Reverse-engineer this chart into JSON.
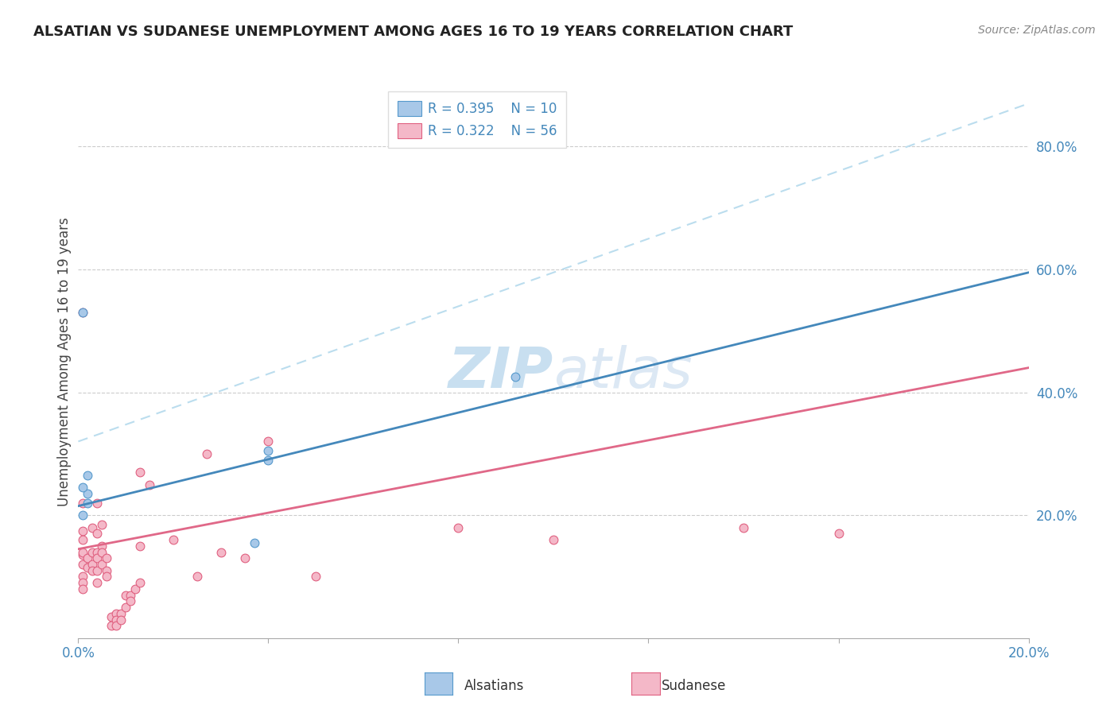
{
  "title": "ALSATIAN VS SUDANESE UNEMPLOYMENT AMONG AGES 16 TO 19 YEARS CORRELATION CHART",
  "source": "Source: ZipAtlas.com",
  "ylabel": "Unemployment Among Ages 16 to 19 years",
  "alsatian_R": "R = 0.395",
  "alsatian_N": "N = 10",
  "sudanese_R": "R = 0.322",
  "sudanese_N": "N = 56",
  "alsatian_color": "#a8c8e8",
  "sudanese_color": "#f4b8c8",
  "alsatian_edge_color": "#5599cc",
  "sudanese_edge_color": "#e06080",
  "trend_blue_color": "#4488bb",
  "trend_pink_color": "#e06888",
  "trend_dashed_color": "#bbddee",
  "legend_text_color": "#4488bb",
  "axis_label_color": "#4488bb",
  "watermark_color": "#ddeeff",
  "grid_color": "#cccccc",
  "title_color": "#222222",
  "source_color": "#888888",
  "ylabel_color": "#444444",
  "xlim": [
    0.0,
    0.2
  ],
  "ylim": [
    0.0,
    0.9
  ],
  "right_yticks": [
    0.2,
    0.4,
    0.6,
    0.8
  ],
  "right_yticklabels": [
    "20.0%",
    "40.0%",
    "60.0%",
    "80.0%"
  ],
  "xtick_positions": [
    0.0,
    0.04,
    0.08,
    0.12,
    0.16,
    0.2
  ],
  "xtick_labels": [
    "0.0%",
    "",
    "",
    "",
    "",
    "20.0%"
  ],
  "blue_trend_x": [
    0.0,
    0.2
  ],
  "blue_trend_y": [
    0.215,
    0.595
  ],
  "pink_trend_x": [
    0.0,
    0.2
  ],
  "pink_trend_y": [
    0.145,
    0.44
  ],
  "dashed_trend_x": [
    0.0,
    0.2
  ],
  "dashed_trend_y": [
    0.32,
    0.87
  ],
  "alsatian_points": [
    [
      0.001,
      0.53
    ],
    [
      0.002,
      0.265
    ],
    [
      0.002,
      0.235
    ],
    [
      0.002,
      0.22
    ],
    [
      0.001,
      0.2
    ],
    [
      0.037,
      0.155
    ],
    [
      0.04,
      0.29
    ],
    [
      0.04,
      0.305
    ],
    [
      0.092,
      0.425
    ],
    [
      0.001,
      0.245
    ]
  ],
  "sudanese_points": [
    [
      0.001,
      0.135
    ],
    [
      0.001,
      0.14
    ],
    [
      0.001,
      0.12
    ],
    [
      0.001,
      0.1
    ],
    [
      0.001,
      0.09
    ],
    [
      0.001,
      0.08
    ],
    [
      0.001,
      0.22
    ],
    [
      0.001,
      0.175
    ],
    [
      0.001,
      0.16
    ],
    [
      0.002,
      0.13
    ],
    [
      0.002,
      0.115
    ],
    [
      0.003,
      0.18
    ],
    [
      0.003,
      0.14
    ],
    [
      0.003,
      0.12
    ],
    [
      0.003,
      0.11
    ],
    [
      0.004,
      0.22
    ],
    [
      0.004,
      0.17
    ],
    [
      0.004,
      0.14
    ],
    [
      0.004,
      0.13
    ],
    [
      0.004,
      0.11
    ],
    [
      0.004,
      0.09
    ],
    [
      0.005,
      0.185
    ],
    [
      0.005,
      0.15
    ],
    [
      0.005,
      0.14
    ],
    [
      0.005,
      0.12
    ],
    [
      0.006,
      0.13
    ],
    [
      0.006,
      0.11
    ],
    [
      0.006,
      0.1
    ],
    [
      0.007,
      0.035
    ],
    [
      0.007,
      0.02
    ],
    [
      0.008,
      0.04
    ],
    [
      0.008,
      0.03
    ],
    [
      0.008,
      0.02
    ],
    [
      0.009,
      0.04
    ],
    [
      0.009,
      0.03
    ],
    [
      0.01,
      0.07
    ],
    [
      0.01,
      0.05
    ],
    [
      0.011,
      0.07
    ],
    [
      0.011,
      0.06
    ],
    [
      0.012,
      0.08
    ],
    [
      0.013,
      0.27
    ],
    [
      0.013,
      0.15
    ],
    [
      0.013,
      0.09
    ],
    [
      0.015,
      0.25
    ],
    [
      0.02,
      0.16
    ],
    [
      0.025,
      0.1
    ],
    [
      0.027,
      0.3
    ],
    [
      0.03,
      0.14
    ],
    [
      0.035,
      0.13
    ],
    [
      0.04,
      0.32
    ],
    [
      0.05,
      0.1
    ],
    [
      0.08,
      0.18
    ],
    [
      0.001,
      0.53
    ],
    [
      0.1,
      0.16
    ],
    [
      0.14,
      0.18
    ],
    [
      0.16,
      0.17
    ]
  ],
  "marker_size": 60,
  "marker_linewidth": 0.8,
  "trend_linewidth": 2.0,
  "dashed_linewidth": 1.5
}
